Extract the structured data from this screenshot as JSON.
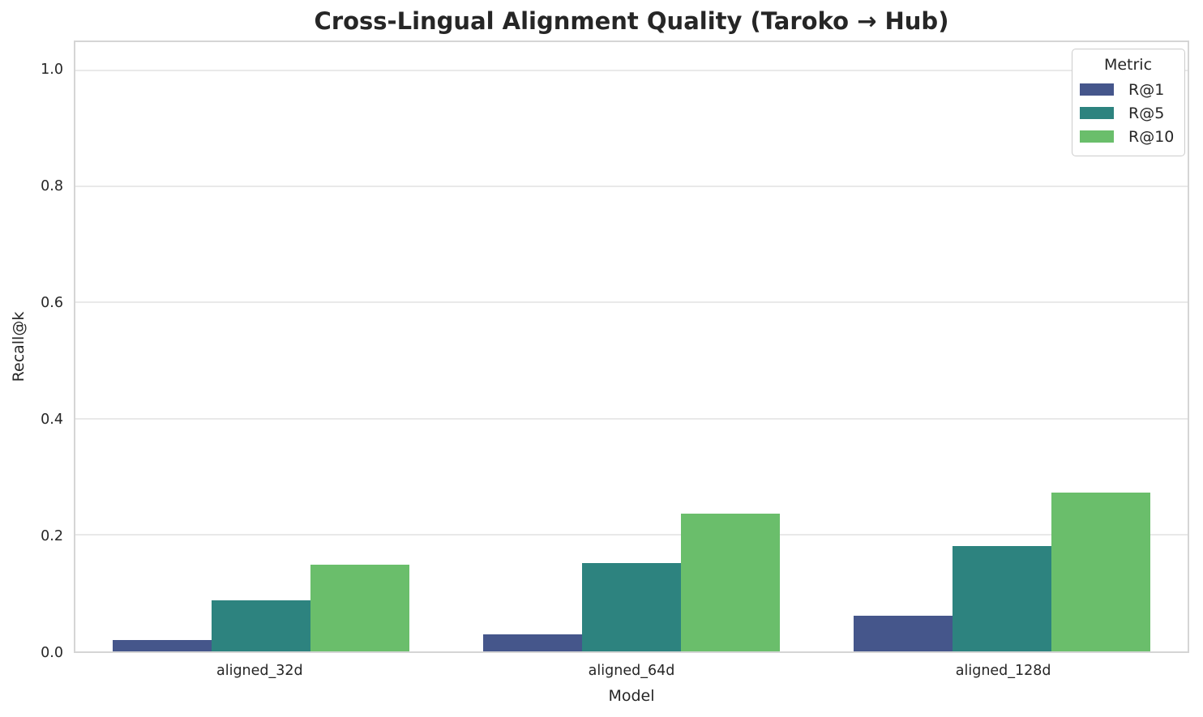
{
  "title": "Cross-Lingual Alignment Quality (Taroko → Hub)",
  "chart_data": {
    "type": "bar",
    "title": "Cross-Lingual Alignment Quality (Taroko → Hub)",
    "xlabel": "Model",
    "ylabel": "Recall@k",
    "categories": [
      "aligned_32d",
      "aligned_64d",
      "aligned_128d"
    ],
    "series": [
      {
        "name": "R@1",
        "color": "#45568b",
        "values": [
          0.02,
          0.03,
          0.062
        ]
      },
      {
        "name": "R@5",
        "color": "#2d837f",
        "values": [
          0.088,
          0.152,
          0.181
        ]
      },
      {
        "name": "R@10",
        "color": "#6abe6b",
        "values": [
          0.15,
          0.238,
          0.274
        ]
      }
    ],
    "ylim": [
      0,
      1.05
    ],
    "yticks": [
      "0.0",
      "0.2",
      "0.4",
      "0.6",
      "0.8",
      "1.0"
    ],
    "grid": "horizontal",
    "legend": {
      "title": "Metric",
      "position": "upper-right"
    },
    "style": {
      "background": "#ffffff",
      "text_color": "#262626",
      "grid_color": "#e9e9e9",
      "spine_color": "#d5d5d5",
      "bar_group_fraction": 0.8
    }
  }
}
